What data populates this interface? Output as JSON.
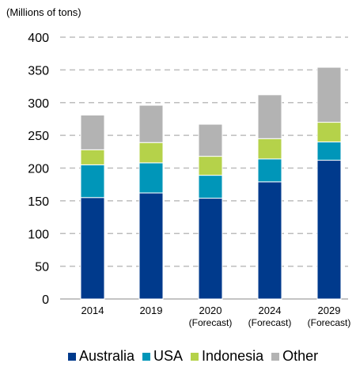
{
  "chart_data": {
    "type": "bar",
    "stacked": true,
    "unit_label": "(Millions of tons)",
    "categories": [
      "2014",
      "2019",
      "2020",
      "2024",
      "2029"
    ],
    "category_sublabels": [
      "",
      "",
      "(Forecast)",
      "(Forecast)",
      "(Forecast)"
    ],
    "series": [
      {
        "name": "Australia",
        "color": "#003a8c",
        "values": [
          155,
          162,
          154,
          179,
          212
        ]
      },
      {
        "name": "USA",
        "color": "#0096b9",
        "values": [
          50,
          46,
          35,
          35,
          28
        ]
      },
      {
        "name": "Indonesia",
        "color": "#b5d24a",
        "values": [
          23,
          31,
          29,
          31,
          30
        ]
      },
      {
        "name": "Other",
        "color": "#b3b3b3",
        "values": [
          53,
          57,
          49,
          67,
          84
        ]
      }
    ],
    "ylim": [
      0,
      400
    ],
    "yticks": [
      "0",
      "50",
      "100",
      "150",
      "200",
      "250",
      "300",
      "350",
      "400"
    ],
    "grid": "dashed horizontal",
    "legend_position": "bottom"
  }
}
